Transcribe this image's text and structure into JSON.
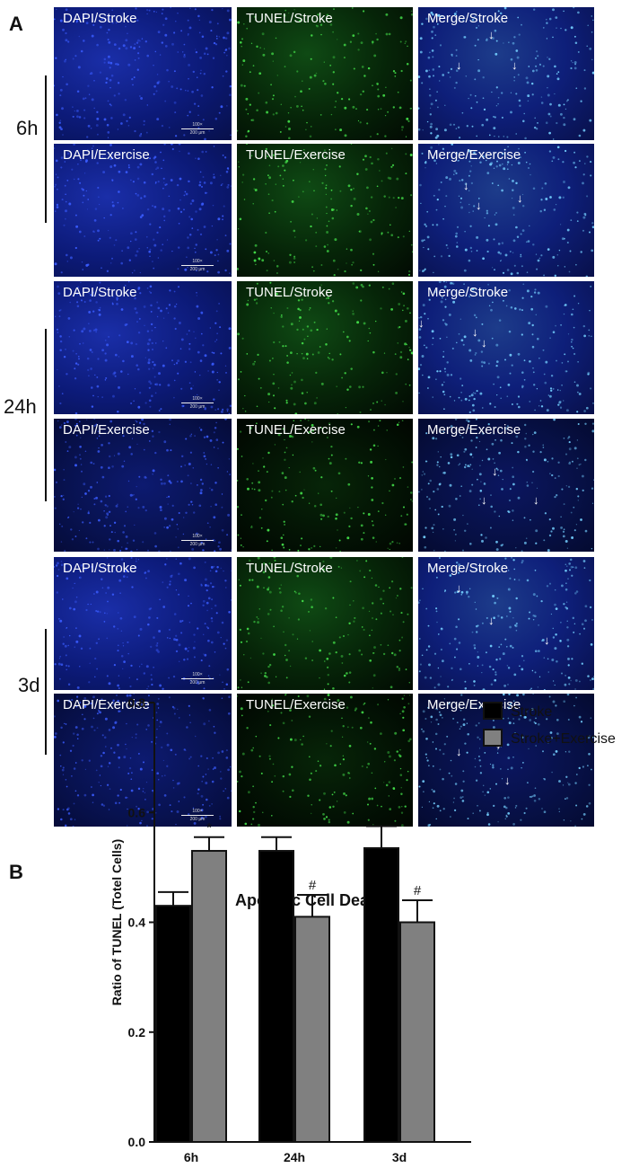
{
  "figure": {
    "panel_a_letter": "A",
    "panel_b_letter": "B"
  },
  "panel_a": {
    "timepoints": [
      {
        "label": "6h",
        "rows": [
          [
            "DAPI/Stroke",
            "TUNEL/Stroke",
            "Merge/Stroke"
          ],
          [
            "DAPI/Exercise",
            "TUNEL/Exercise",
            "Merge/Exercise"
          ]
        ]
      },
      {
        "label": "24h",
        "rows": [
          [
            "DAPI/Stroke",
            "TUNEL/Stroke",
            "Merge/Stroke"
          ],
          [
            "DAPI/Exercise",
            "TUNEL/Exercise",
            "Merge/Exercise"
          ]
        ]
      },
      {
        "label": "3d",
        "rows": [
          [
            "DAPI/Stroke",
            "TUNEL/Stroke",
            "Merge/Stroke"
          ],
          [
            "DAPI/Exercise",
            "TUNEL/Exercise",
            "Merge/Exercise"
          ]
        ]
      }
    ],
    "scale_bar": {
      "top": "100×",
      "bottom": "200 μm"
    },
    "arrow_glyph": "↓",
    "colors": {
      "dapi": "#1f3fd8",
      "tunel": "#35c83a",
      "merge": "#5ab8e0"
    }
  },
  "chart_data": {
    "type": "bar",
    "title": "Apototic Cell Death",
    "xlabel": "",
    "ylabel": "Ratio of TUNEL (Totel Cells)",
    "categories": [
      "6h",
      "24h",
      "3d"
    ],
    "ylim": [
      0.0,
      0.8
    ],
    "yticks": [
      "0.0",
      "0.2",
      "0.4",
      "0.6",
      "0.8"
    ],
    "legend_position": "right",
    "series": [
      {
        "name": "Stroke",
        "color": "#000000",
        "values": [
          0.43,
          0.53,
          0.535
        ],
        "errors": [
          0.025,
          0.025,
          0.04
        ],
        "annotations": [
          "",
          "",
          ""
        ]
      },
      {
        "name": "Stroke+Exercise",
        "color": "#808080",
        "values": [
          0.53,
          0.41,
          0.4
        ],
        "errors": [
          0.025,
          0.04,
          0.04
        ],
        "annotations": [
          "*",
          "#",
          "#"
        ]
      }
    ]
  }
}
